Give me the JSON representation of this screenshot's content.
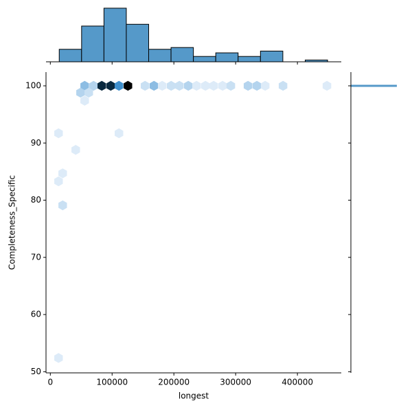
{
  "chart_data": {
    "type": "hexbin",
    "x_label": "longest",
    "y_label": "Completeness_Specific",
    "xlim": [
      -7000,
      471000
    ],
    "ylim": [
      49.8,
      102.4
    ],
    "xticks": [
      0,
      100000,
      200000,
      300000,
      400000
    ],
    "yticks": [
      50,
      60,
      70,
      80,
      90,
      100
    ],
    "colormap": [
      "#f2f7fd",
      "#b4d4ee",
      "#3f8fcc",
      "#0e3d5e",
      "#000000"
    ],
    "hexes": {
      "x": [
        55600,
        70000,
        83300,
        97800,
        111100,
        125600,
        153300,
        167800,
        181100,
        195600,
        208900,
        223300,
        236700,
        251100,
        264400,
        278900,
        292200,
        320000,
        334400,
        347800,
        376700,
        447800,
        48900,
        62200,
        55600,
        13300,
        41100,
        20000,
        13300,
        20000,
        13300,
        111100
      ],
      "y": [
        100,
        100,
        100,
        100,
        100,
        100,
        100,
        100,
        100,
        100,
        100,
        100,
        100,
        100,
        100,
        100,
        100,
        100,
        100,
        100,
        100,
        100,
        98.8,
        98.8,
        97.4,
        91.7,
        88.8,
        84.7,
        83.3,
        79.1,
        52.4,
        91.7
      ],
      "counts": [
        4,
        3,
        10,
        10,
        6,
        12,
        2,
        4,
        1,
        2,
        2,
        3,
        1,
        1,
        1,
        1,
        2,
        3,
        3,
        1,
        2,
        1,
        3,
        2,
        1,
        1,
        1,
        1,
        1,
        2,
        1,
        1
      ]
    },
    "marginal_x": {
      "type": "histogram",
      "color": "#5599c9",
      "bins": [
        14400,
        50600,
        86800,
        123000,
        159200,
        195400,
        231600,
        267800,
        304000,
        340200,
        376400,
        412600,
        448800
      ],
      "counts": [
        7,
        20,
        30,
        21,
        7,
        8,
        3,
        5,
        3,
        6,
        0,
        1
      ],
      "ylim": [
        0,
        31.5
      ]
    },
    "marginal_y": {
      "type": "histogram",
      "color": "#5599c9",
      "bins": [
        99.85,
        100.15
      ],
      "counts": [
        80
      ],
      "xlim": [
        0,
        84
      ]
    }
  }
}
